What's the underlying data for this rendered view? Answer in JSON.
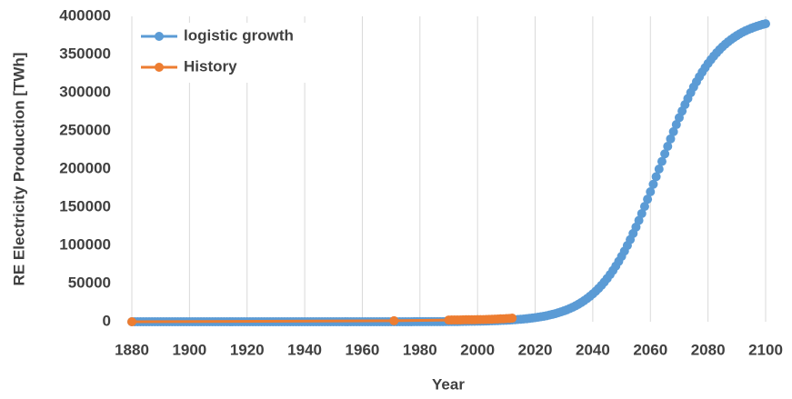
{
  "chart_data": {
    "type": "line",
    "x_label": "Year",
    "y_label": "RE Electricity Production [TWh]",
    "xlim": [
      1880,
      2100
    ],
    "xticks": [
      1880,
      1900,
      1920,
      1940,
      1960,
      1980,
      2000,
      2020,
      2040,
      2060,
      2080,
      2100
    ],
    "ylim": [
      0,
      400000
    ],
    "yticks": [
      0,
      50000,
      100000,
      150000,
      200000,
      250000,
      300000,
      350000,
      400000
    ],
    "xgrid": true,
    "legend": "upper left",
    "series": [
      {
        "name": "logistic growth",
        "color": "#5b9bd5",
        "x": [
          1880,
          1881,
          1882,
          1883,
          1884,
          1885,
          1886,
          1887,
          1888,
          1889,
          1890,
          1891,
          1892,
          1893,
          1894,
          1895,
          1896,
          1897,
          1898,
          1899,
          1900,
          1901,
          1902,
          1903,
          1904,
          1905,
          1906,
          1907,
          1908,
          1909,
          1910,
          1911,
          1912,
          1913,
          1914,
          1915,
          1916,
          1917,
          1918,
          1919,
          1920,
          1921,
          1922,
          1923,
          1924,
          1925,
          1926,
          1927,
          1928,
          1929,
          1930,
          1931,
          1932,
          1933,
          1934,
          1935,
          1936,
          1937,
          1938,
          1939,
          1940,
          1941,
          1942,
          1943,
          1944,
          1945,
          1946,
          1947,
          1948,
          1949,
          1950,
          1951,
          1952,
          1953,
          1954,
          1955,
          1956,
          1957,
          1958,
          1959,
          1960,
          1961,
          1962,
          1963,
          1964,
          1965,
          1966,
          1967,
          1968,
          1969,
          1970,
          1971,
          1972,
          1973,
          1974,
          1975,
          1976,
          1977,
          1978,
          1979,
          1980,
          1981,
          1982,
          1983,
          1984,
          1985,
          1986,
          1987,
          1988,
          1989,
          1990,
          1991,
          1992,
          1993,
          1994,
          1995,
          1996,
          1997,
          1998,
          1999,
          2000,
          2001,
          2002,
          2003,
          2004,
          2005,
          2006,
          2007,
          2008,
          2009,
          2010,
          2011,
          2012,
          2013,
          2014,
          2015,
          2016,
          2017,
          2018,
          2019,
          2020,
          2021,
          2022,
          2023,
          2024,
          2025,
          2026,
          2027,
          2028,
          2029,
          2030,
          2031,
          2032,
          2033,
          2034,
          2035,
          2036,
          2037,
          2038,
          2039,
          2040,
          2041,
          2042,
          2043,
          2044,
          2045,
          2046,
          2047,
          2048,
          2049,
          2050,
          2051,
          2052,
          2053,
          2054,
          2055,
          2056,
          2057,
          2058,
          2059,
          2060,
          2061,
          2062,
          2063,
          2064,
          2065,
          2066,
          2067,
          2068,
          2069,
          2070,
          2071,
          2072,
          2073,
          2074,
          2075,
          2076,
          2077,
          2078,
          2079,
          2080,
          2081,
          2082,
          2083,
          2084,
          2085,
          2086,
          2087,
          2088,
          2089,
          2090,
          2091,
          2092,
          2093,
          2094,
          2095,
          2096,
          2097,
          2098,
          2099,
          2100
        ],
        "values": [
          0,
          0,
          0,
          0,
          0,
          0,
          0,
          0,
          0,
          0,
          0,
          0,
          0,
          0,
          0,
          0,
          0,
          0,
          0,
          0,
          0,
          0,
          0,
          0,
          0,
          0,
          0,
          0,
          0,
          0,
          0,
          0,
          0,
          0,
          0,
          0,
          0,
          0,
          0,
          0,
          0,
          0,
          0,
          0,
          0,
          0,
          0,
          0,
          1,
          1,
          1,
          1,
          1,
          1,
          1,
          1,
          1,
          1,
          1,
          2,
          2,
          2,
          2,
          2,
          3,
          3,
          3,
          4,
          4,
          4,
          5,
          5,
          6,
          7,
          7,
          8,
          9,
          10,
          11,
          12,
          13,
          15,
          16,
          18,
          20,
          22,
          25,
          27,
          30,
          33,
          37,
          40,
          45,
          49,
          55,
          60,
          67,
          74,
          81,
          90,
          99,
          110,
          121,
          134,
          148,
          164,
          181,
          200,
          221,
          244,
          270,
          298,
          330,
          364,
          402,
          444,
          491,
          542,
          599,
          661,
          730,
          806,
          891,
          984,
          1087,
          1209,
          1336,
          1477,
          1631,
          1802,
          1986,
          2194,
          2423,
          2677,
          2957,
          3265,
          3605,
          3981,
          4395,
          4851,
          5355,
          5909,
          6521,
          7194,
          7936,
          8752,
          9651,
          10639,
          11725,
          12918,
          14228,
          15666,
          17243,
          18970,
          20861,
          22930,
          25189,
          27656,
          30343,
          33269,
          36449,
          39900,
          43638,
          47681,
          52044,
          56740,
          61786,
          67193,
          72970,
          79127,
          85666,
          92590,
          99896,
          107577,
          115620,
          124010,
          132725,
          141738,
          151017,
          160526,
          170223,
          180066,
          190008,
          200000,
          209992,
          219934,
          229777,
          239474,
          248983,
          258262,
          267275,
          275990,
          284380,
          292423,
          300104,
          307410,
          314334,
          320873,
          327030,
          332807,
          338214,
          343260,
          347956,
          352319,
          356362,
          360100,
          363551,
          366731,
          369657,
          372344,
          374811,
          377070,
          379139,
          381030,
          382757,
          384334,
          385772,
          387082,
          388275,
          389361,
          390349
        ]
      },
      {
        "name": "History",
        "color": "#ed7d31",
        "x": [
          1880,
          1971,
          1990,
          1991,
          1992,
          1993,
          1994,
          1995,
          1996,
          1997,
          1998,
          1999,
          2000,
          2001,
          2002,
          2003,
          2004,
          2005,
          2006,
          2007,
          2008,
          2009,
          2010,
          2011,
          2012
        ],
        "values": [
          0,
          1300,
          2270,
          2330,
          2350,
          2410,
          2440,
          2560,
          2610,
          2670,
          2700,
          2740,
          2850,
          2810,
          2880,
          2920,
          3140,
          3280,
          3440,
          3550,
          3800,
          3880,
          4200,
          4380,
          4700
        ]
      }
    ]
  }
}
